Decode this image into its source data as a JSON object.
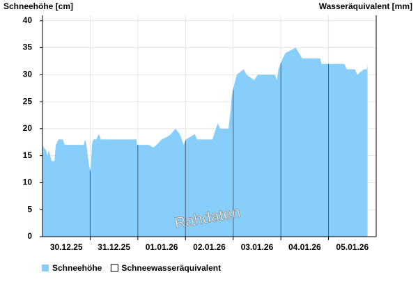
{
  "chart_data": {
    "type": "area",
    "y_label": "Schneehöhe [cm]",
    "y2_label": "Wasseräquivalent [mm]",
    "watermark": "Rohdaten",
    "xlim": [
      0,
      168
    ],
    "xticks": [
      {
        "value": 12,
        "label": "30.12.25"
      },
      {
        "value": 36,
        "label": "31.12.25"
      },
      {
        "value": 60,
        "label": "01.01.26"
      },
      {
        "value": 84,
        "label": "02.01.26"
      },
      {
        "value": 108,
        "label": "03.01.26"
      },
      {
        "value": 132,
        "label": "04.01.26"
      },
      {
        "value": 156,
        "label": "05.01.26"
      }
    ],
    "day_boundaries": [
      24,
      48,
      72,
      96,
      120,
      144
    ],
    "ylim": [
      0,
      41
    ],
    "yticks": [
      0,
      5,
      10,
      15,
      20,
      25,
      30,
      35,
      40
    ],
    "grid": true,
    "series": [
      {
        "name": "Schneehöhe",
        "color": "#87cefa",
        "x": [
          0,
          0.7,
          1.8,
          2.5,
          3.2,
          3.9,
          4.6,
          6,
          6.7,
          8,
          10.2,
          11.2,
          20.8,
          21.4,
          22.1,
          22.8,
          23.5,
          24.2,
          24.9,
          25.6,
          27,
          28.4,
          29.4,
          47.3,
          47.6,
          53.6,
          55.7,
          57.5,
          60,
          62.8,
          64.6,
          67,
          69.1,
          71.1,
          72.2,
          76.7,
          77.8,
          85.5,
          87.3,
          88.3,
          89.4,
          93.6,
          94.3,
          95.3,
          96.4,
          97.8,
          99.5,
          101.3,
          102.7,
          106.6,
          108.3,
          116.9,
          118,
          118.8,
          119.8,
          120.9,
          122.3,
          127.4,
          129.2,
          130.7,
          139.8,
          140.5,
          152,
          153.1,
          157.3,
          158.4,
          161.8,
          163.3,
          163.6
        ],
        "values": [
          17,
          16.5,
          16,
          15,
          16,
          15,
          14,
          14,
          17,
          18,
          18,
          17,
          17,
          18,
          17,
          15,
          13,
          12,
          17,
          18,
          18,
          19,
          18,
          18,
          17,
          17,
          16.5,
          17,
          18,
          18.5,
          19,
          20,
          19,
          17,
          18,
          19,
          18,
          18,
          20,
          21,
          20,
          20,
          22,
          26,
          28,
          30,
          30.5,
          31,
          30,
          29,
          30,
          30,
          29,
          31,
          32,
          33,
          34,
          35,
          34,
          33,
          33,
          32,
          32,
          31,
          31,
          30,
          31,
          31,
          32
        ]
      },
      {
        "name": "Schneewasseräquivalent",
        "color": "#ffffff"
      }
    ]
  }
}
